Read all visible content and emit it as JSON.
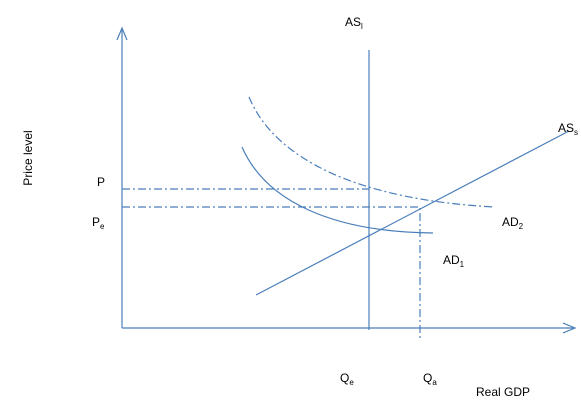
{
  "labels": {
    "as_long": {
      "main": "AS",
      "sub": "l"
    },
    "as_short": {
      "main": "AS",
      "sub": "s"
    },
    "p": {
      "main": "P"
    },
    "pe": {
      "main": "P",
      "sub": "e"
    },
    "ad2": {
      "main": "AD",
      "sub": "2"
    },
    "ad1": {
      "main": "AD",
      "sub": "1"
    },
    "qe": {
      "main": "Q",
      "sub": "e"
    },
    "qa": {
      "main": "Q",
      "sub": "a"
    }
  },
  "axes": {
    "y_label": "Price level",
    "x_label": "Real GDP"
  }
}
